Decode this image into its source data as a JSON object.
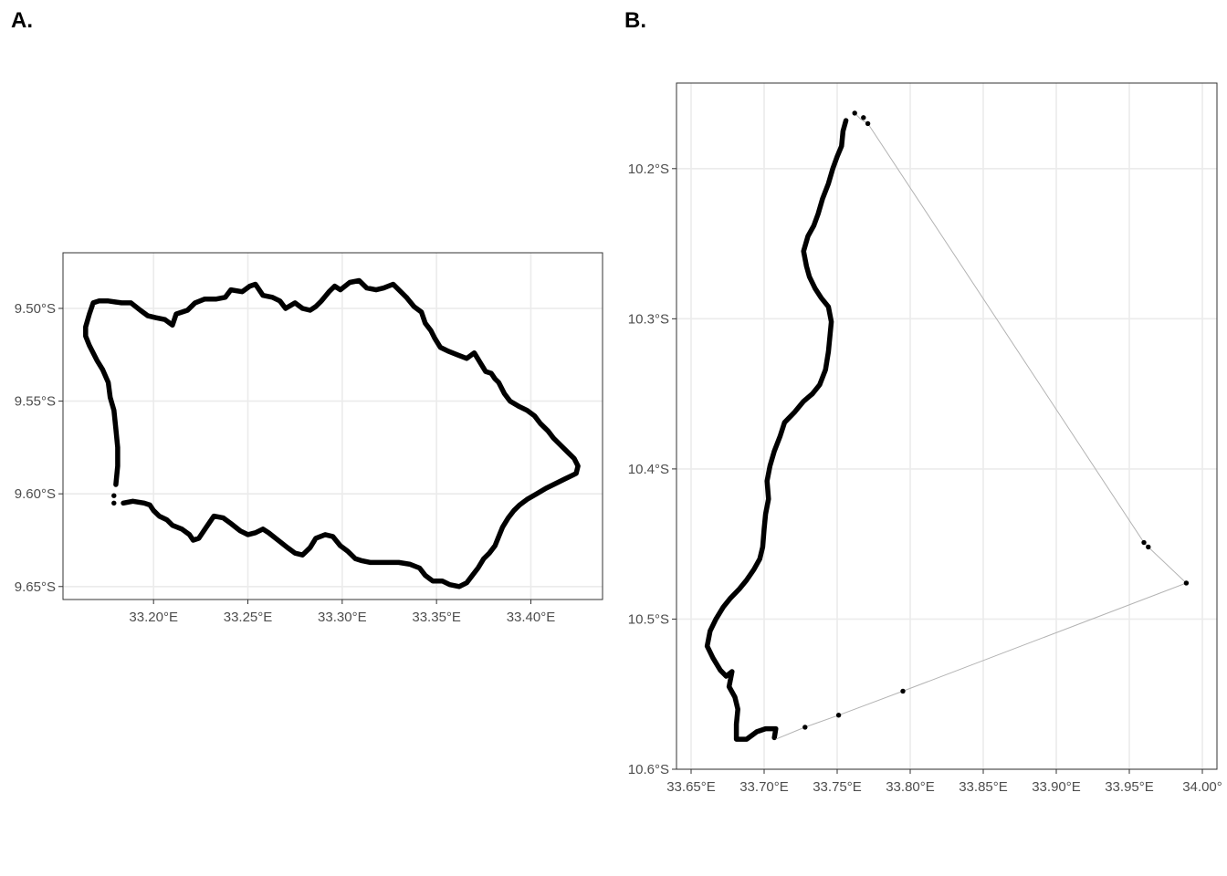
{
  "chart_data": [
    {
      "type": "scatter",
      "panel_tag": "A.",
      "title": "",
      "xlabel": "",
      "ylabel": "",
      "xlim": [
        33.152,
        33.438
      ],
      "ylim": [
        -9.657,
        -9.47
      ],
      "grid": true,
      "legend": "none",
      "x_ticks": [
        33.2,
        33.25,
        33.3,
        33.35,
        33.4
      ],
      "x_tick_labels": [
        "33.20°E",
        "33.25°E",
        "33.30°E",
        "33.35°E",
        "33.40°E"
      ],
      "y_ticks": [
        -9.5,
        -9.55,
        -9.6,
        -9.65
      ],
      "y_tick_labels": [
        "9.50°S",
        "9.55°S",
        "9.60°S",
        "9.65°S"
      ],
      "series": [
        {
          "style": "dense-track",
          "color": "#000000",
          "points": [
            [
              33.18,
              -9.595
            ],
            [
              33.181,
              -9.585
            ],
            [
              33.181,
              -9.575
            ],
            [
              33.18,
              -9.565
            ],
            [
              33.179,
              -9.555
            ],
            [
              33.177,
              -9.548
            ],
            [
              33.176,
              -9.54
            ],
            [
              33.173,
              -9.533
            ],
            [
              33.17,
              -9.528
            ],
            [
              33.166,
              -9.52
            ],
            [
              33.164,
              -9.515
            ],
            [
              33.164,
              -9.51
            ],
            [
              33.166,
              -9.503
            ],
            [
              33.168,
              -9.497
            ],
            [
              33.171,
              -9.496
            ],
            [
              33.176,
              -9.496
            ],
            [
              33.183,
              -9.497
            ],
            [
              33.188,
              -9.497
            ],
            [
              33.193,
              -9.501
            ],
            [
              33.197,
              -9.504
            ],
            [
              33.201,
              -9.505
            ],
            [
              33.206,
              -9.506
            ],
            [
              33.21,
              -9.509
            ],
            [
              33.212,
              -9.503
            ],
            [
              33.218,
              -9.501
            ],
            [
              33.222,
              -9.497
            ],
            [
              33.227,
              -9.495
            ],
            [
              33.233,
              -9.495
            ],
            [
              33.238,
              -9.494
            ],
            [
              33.241,
              -9.49
            ],
            [
              33.247,
              -9.491
            ],
            [
              33.251,
              -9.488
            ],
            [
              33.254,
              -9.487
            ],
            [
              33.258,
              -9.493
            ],
            [
              33.263,
              -9.494
            ],
            [
              33.267,
              -9.496
            ],
            [
              33.27,
              -9.5
            ],
            [
              33.275,
              -9.497
            ],
            [
              33.279,
              -9.5
            ],
            [
              33.283,
              -9.501
            ],
            [
              33.286,
              -9.499
            ],
            [
              33.289,
              -9.496
            ],
            [
              33.293,
              -9.491
            ],
            [
              33.296,
              -9.488
            ],
            [
              33.299,
              -9.49
            ],
            [
              33.304,
              -9.486
            ],
            [
              33.309,
              -9.485
            ],
            [
              33.313,
              -9.489
            ],
            [
              33.318,
              -9.49
            ],
            [
              33.322,
              -9.489
            ],
            [
              33.327,
              -9.487
            ],
            [
              33.33,
              -9.49
            ],
            [
              33.334,
              -9.494
            ],
            [
              33.338,
              -9.499
            ],
            [
              33.342,
              -9.502
            ],
            [
              33.344,
              -9.508
            ],
            [
              33.347,
              -9.512
            ],
            [
              33.349,
              -9.516
            ],
            [
              33.352,
              -9.521
            ],
            [
              33.356,
              -9.523
            ],
            [
              33.361,
              -9.525
            ],
            [
              33.366,
              -9.527
            ],
            [
              33.37,
              -9.524
            ],
            [
              33.373,
              -9.529
            ],
            [
              33.376,
              -9.534
            ],
            [
              33.379,
              -9.535
            ],
            [
              33.381,
              -9.538
            ],
            [
              33.383,
              -9.54
            ],
            [
              33.386,
              -9.546
            ],
            [
              33.389,
              -9.55
            ],
            [
              33.394,
              -9.553
            ],
            [
              33.398,
              -9.555
            ],
            [
              33.402,
              -9.558
            ],
            [
              33.405,
              -9.562
            ],
            [
              33.409,
              -9.566
            ],
            [
              33.412,
              -9.57
            ],
            [
              33.416,
              -9.574
            ],
            [
              33.42,
              -9.578
            ],
            [
              33.423,
              -9.581
            ],
            [
              33.425,
              -9.585
            ],
            [
              33.424,
              -9.589
            ],
            [
              33.422,
              -9.59
            ],
            [
              33.418,
              -9.592
            ],
            [
              33.414,
              -9.594
            ],
            [
              33.408,
              -9.597
            ],
            [
              33.403,
              -9.6
            ],
            [
              33.398,
              -9.603
            ],
            [
              33.394,
              -9.606
            ],
            [
              33.391,
              -9.609
            ],
            [
              33.388,
              -9.613
            ],
            [
              33.385,
              -9.618
            ],
            [
              33.383,
              -9.623
            ],
            [
              33.381,
              -9.628
            ],
            [
              33.378,
              -9.632
            ],
            [
              33.375,
              -9.635
            ],
            [
              33.372,
              -9.64
            ],
            [
              33.369,
              -9.644
            ],
            [
              33.366,
              -9.648
            ],
            [
              33.362,
              -9.65
            ],
            [
              33.357,
              -9.649
            ],
            [
              33.353,
              -9.647
            ],
            [
              33.348,
              -9.647
            ],
            [
              33.344,
              -9.644
            ],
            [
              33.341,
              -9.64
            ],
            [
              33.336,
              -9.638
            ],
            [
              33.33,
              -9.637
            ],
            [
              33.325,
              -9.637
            ],
            [
              33.32,
              -9.637
            ],
            [
              33.315,
              -9.637
            ],
            [
              33.31,
              -9.636
            ],
            [
              33.307,
              -9.635
            ],
            [
              33.303,
              -9.631
            ],
            [
              33.299,
              -9.628
            ],
            [
              33.295,
              -9.623
            ],
            [
              33.291,
              -9.622
            ],
            [
              33.286,
              -9.624
            ],
            [
              33.283,
              -9.629
            ],
            [
              33.279,
              -9.633
            ],
            [
              33.275,
              -9.632
            ],
            [
              33.271,
              -9.629
            ],
            [
              33.266,
              -9.625
            ],
            [
              33.261,
              -9.621
            ],
            [
              33.258,
              -9.619
            ],
            [
              33.254,
              -9.621
            ],
            [
              33.25,
              -9.622
            ],
            [
              33.246,
              -9.62
            ],
            [
              33.241,
              -9.616
            ],
            [
              33.237,
              -9.613
            ],
            [
              33.232,
              -9.612
            ],
            [
              33.228,
              -9.618
            ],
            [
              33.224,
              -9.624
            ],
            [
              33.221,
              -9.625
            ],
            [
              33.219,
              -9.622
            ],
            [
              33.215,
              -9.619
            ],
            [
              33.21,
              -9.617
            ],
            [
              33.207,
              -9.614
            ],
            [
              33.203,
              -9.612
            ],
            [
              33.2,
              -9.609
            ],
            [
              33.198,
              -9.606
            ],
            [
              33.195,
              -9.605
            ],
            [
              33.189,
              -9.604
            ],
            [
              33.184,
              -9.605
            ]
          ]
        },
        {
          "style": "points",
          "color": "#000000",
          "points": [
            [
              33.179,
              -9.601
            ],
            [
              33.179,
              -9.605
            ]
          ]
        }
      ]
    },
    {
      "type": "scatter",
      "panel_tag": "B.",
      "title": "",
      "xlabel": "",
      "ylabel": "",
      "xlim": [
        33.64,
        34.01
      ],
      "ylim": [
        -10.6,
        -10.143
      ],
      "grid": true,
      "legend": "none",
      "x_ticks": [
        33.65,
        33.7,
        33.75,
        33.8,
        33.85,
        33.9,
        33.95,
        34.0
      ],
      "x_tick_labels": [
        "33.65°E",
        "33.70°E",
        "33.75°E",
        "33.80°E",
        "33.85°E",
        "33.90°E",
        "33.95°E",
        "34.00°"
      ],
      "y_ticks": [
        -10.2,
        -10.3,
        -10.4,
        -10.5,
        -10.6
      ],
      "y_tick_labels": [
        "10.2°S",
        "10.3°S",
        "10.4°S",
        "10.5°S",
        "10.6°S"
      ],
      "series": [
        {
          "style": "dense-track",
          "color": "#000000",
          "points": [
            [
              33.756,
              -10.168
            ],
            [
              33.754,
              -10.175
            ],
            [
              33.753,
              -10.185
            ],
            [
              33.75,
              -10.192
            ],
            [
              33.747,
              -10.2
            ],
            [
              33.744,
              -10.21
            ],
            [
              33.74,
              -10.22
            ],
            [
              33.737,
              -10.23
            ],
            [
              33.734,
              -10.238
            ],
            [
              33.73,
              -10.245
            ],
            [
              33.727,
              -10.255
            ],
            [
              33.729,
              -10.265
            ],
            [
              33.731,
              -10.272
            ],
            [
              33.735,
              -10.28
            ],
            [
              33.739,
              -10.286
            ],
            [
              33.744,
              -10.292
            ],
            [
              33.746,
              -10.302
            ],
            [
              33.745,
              -10.312
            ],
            [
              33.744,
              -10.322
            ],
            [
              33.742,
              -10.334
            ],
            [
              33.738,
              -10.344
            ],
            [
              33.733,
              -10.35
            ],
            [
              33.727,
              -10.355
            ],
            [
              33.721,
              -10.362
            ],
            [
              33.714,
              -10.369
            ],
            [
              33.711,
              -10.378
            ],
            [
              33.707,
              -10.388
            ],
            [
              33.704,
              -10.398
            ],
            [
              33.702,
              -10.408
            ],
            [
              33.703,
              -10.42
            ],
            [
              33.701,
              -10.43
            ],
            [
              33.7,
              -10.44
            ],
            [
              33.699,
              -10.452
            ],
            [
              33.697,
              -10.46
            ],
            [
              33.693,
              -10.467
            ],
            [
              33.688,
              -10.474
            ],
            [
              33.683,
              -10.48
            ],
            [
              33.677,
              -10.486
            ],
            [
              33.672,
              -10.492
            ],
            [
              33.667,
              -10.5
            ],
            [
              33.663,
              -10.508
            ],
            [
              33.661,
              -10.518
            ],
            [
              33.665,
              -10.526
            ],
            [
              33.67,
              -10.534
            ],
            [
              33.674,
              -10.538
            ],
            [
              33.678,
              -10.535
            ],
            [
              33.676,
              -10.545
            ],
            [
              33.68,
              -10.552
            ],
            [
              33.682,
              -10.56
            ],
            [
              33.681,
              -10.57
            ],
            [
              33.681,
              -10.58
            ],
            [
              33.688,
              -10.58
            ],
            [
              33.695,
              -10.575
            ],
            [
              33.701,
              -10.573
            ],
            [
              33.708,
              -10.573
            ],
            [
              33.707,
              -10.579
            ]
          ]
        },
        {
          "style": "connector",
          "color": "#b3b3b3",
          "points": [
            [
              33.708,
              -10.58
            ],
            [
              33.728,
              -10.572
            ],
            [
              33.751,
              -10.564
            ],
            [
              33.795,
              -10.548
            ],
            [
              33.989,
              -10.476
            ],
            [
              33.963,
              -10.452
            ],
            [
              33.96,
              -10.449
            ],
            [
              33.771,
              -10.17
            ],
            [
              33.766,
              -10.167
            ],
            [
              33.762,
              -10.163
            ]
          ]
        },
        {
          "style": "points",
          "color": "#000000",
          "points": [
            [
              33.728,
              -10.572
            ],
            [
              33.751,
              -10.564
            ],
            [
              33.795,
              -10.548
            ],
            [
              33.989,
              -10.476
            ],
            [
              33.963,
              -10.452
            ],
            [
              33.96,
              -10.449
            ],
            [
              33.771,
              -10.17
            ],
            [
              33.768,
              -10.166
            ],
            [
              33.762,
              -10.163
            ]
          ]
        }
      ]
    }
  ]
}
